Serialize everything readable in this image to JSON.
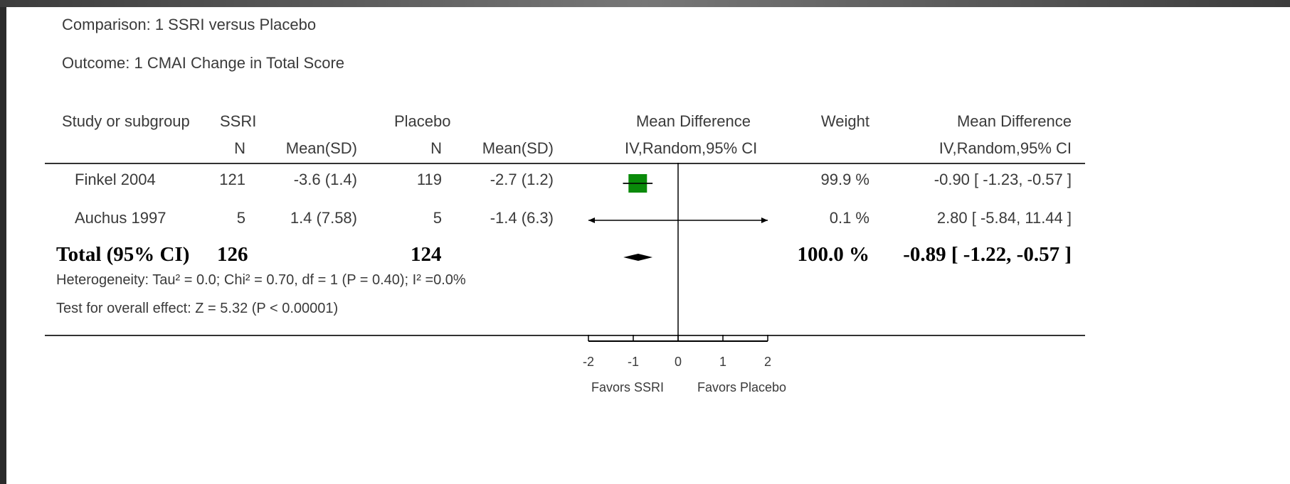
{
  "comparison": "Comparison:   1 SSRI versus Placebo",
  "outcome": "Outcome:   1 CMAI Change in Total Score",
  "headers": {
    "study": "Study or subgroup",
    "ssri": "SSRI",
    "ssri_n": "N",
    "ssri_mean": "Mean(SD)",
    "placebo": "Placebo",
    "placebo_n": "N",
    "placebo_mean": "Mean(SD)",
    "md_plot": "Mean Difference",
    "md_plot_method": "IV,Random,95% CI",
    "weight": "Weight",
    "md": "Mean Difference",
    "md_method": "IV,Random,95% CI"
  },
  "studies": [
    {
      "name": "Finkel 2004",
      "ssri_n": "121",
      "ssri_mean": "-3.6 (1.4)",
      "placebo_n": "119",
      "placebo_mean": "-2.7 (1.2)",
      "weight": "99.9 %",
      "md": "-0.90 [ -1.23, -0.57 ]"
    },
    {
      "name": "Auchus 1997",
      "ssri_n": "5",
      "ssri_mean": "1.4 (7.58)",
      "placebo_n": "5",
      "placebo_mean": "-1.4 (6.3)",
      "weight": "0.1 %",
      "md": "2.80 [ -5.84, 11.44 ]"
    }
  ],
  "total": {
    "label": "Total (95% CI)",
    "ssri_n": "126",
    "placebo_n": "124",
    "weight": "100.0 %",
    "md": "-0.89 [ -1.22, -0.57 ]"
  },
  "heterogeneity": "Heterogeneity: Tau² = 0.0; Chi² = 0.70, df = 1 (P = 0.40); I² =0.0%",
  "overall_effect": "Test for overall effect: Z = 5.32 (P < 0.00001)",
  "axis": {
    "ticks": [
      "-2",
      "-1",
      "0",
      "1",
      "2"
    ],
    "favors_left": "Favors SSRI",
    "favors_right": "Favors Placebo"
  },
  "colors": {
    "study_marker": "#0a8a0a",
    "line": "#000000",
    "background": "#2b2b2b"
  },
  "chart_data": {
    "type": "forest",
    "xlim": [
      -2,
      2
    ],
    "tick_values": [
      -2,
      -1,
      0,
      1,
      2
    ],
    "studies": [
      {
        "name": "Finkel 2004",
        "estimate": -0.9,
        "ci": [
          -1.23,
          -0.57
        ],
        "weight": 99.9,
        "clipped_left": false,
        "clipped_right": false
      },
      {
        "name": "Auchus 1997",
        "estimate": 2.8,
        "ci": [
          -5.84,
          11.44
        ],
        "weight": 0.1,
        "clipped_left": true,
        "clipped_right": true
      }
    ],
    "total": {
      "estimate": -0.89,
      "ci": [
        -1.22,
        -0.57
      ]
    }
  }
}
